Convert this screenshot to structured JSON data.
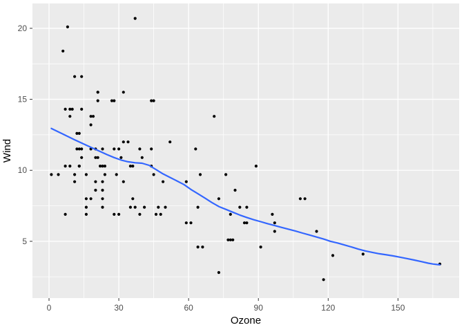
{
  "chart_data": {
    "type": "scatter",
    "title": "",
    "xlabel": "Ozone",
    "ylabel": "Wind",
    "legend": "none",
    "grid": true,
    "xlim": [
      -7.12,
      176.3
    ],
    "ylim": [
      1.0,
      21.75
    ],
    "x_ticks": [
      0,
      30,
      60,
      90,
      120,
      150
    ],
    "y_ticks": [
      5,
      10,
      15,
      20
    ],
    "x_minor_ticks": [
      15,
      45,
      75,
      105,
      135,
      165
    ],
    "y_minor_ticks": [
      2.5,
      7.5,
      12.5,
      17.5
    ],
    "colors": {
      "panel_bg": "#ebebeb",
      "grid_major": "#ffffff",
      "grid_minor": "#ffffff",
      "point": "#000000",
      "smooth_line": "#3366ff",
      "tick_mark": "#333333",
      "tick_label": "#4d4d4d",
      "axis_title": "#000000",
      "outer_bg": "#ffffff"
    },
    "point_radius": 2.1,
    "smooth_line_width": 2.2,
    "points": [
      [
        41,
        7.4
      ],
      [
        36,
        8.0
      ],
      [
        12,
        12.6
      ],
      [
        18,
        11.5
      ],
      [
        28,
        14.9
      ],
      [
        23,
        8.6
      ],
      [
        19,
        13.8
      ],
      [
        8,
        20.1
      ],
      [
        7,
        6.9
      ],
      [
        16,
        9.7
      ],
      [
        11,
        9.2
      ],
      [
        14,
        10.9
      ],
      [
        18,
        13.2
      ],
      [
        14,
        11.5
      ],
      [
        34,
        12.0
      ],
      [
        6,
        18.4
      ],
      [
        30,
        11.5
      ],
      [
        11,
        9.7
      ],
      [
        1,
        9.7
      ],
      [
        11,
        16.6
      ],
      [
        4,
        9.7
      ],
      [
        32,
        12.0
      ],
      [
        23,
        11.5
      ],
      [
        45,
        14.9
      ],
      [
        115,
        5.7
      ],
      [
        37,
        7.4
      ],
      [
        29,
        9.7
      ],
      [
        71,
        13.8
      ],
      [
        39,
        11.5
      ],
      [
        23,
        8.0
      ],
      [
        21,
        14.9
      ],
      [
        37,
        20.7
      ],
      [
        20,
        9.2
      ],
      [
        12,
        11.5
      ],
      [
        13,
        10.3
      ],
      [
        135,
        4.1
      ],
      [
        49,
        9.2
      ],
      [
        32,
        9.2
      ],
      [
        64,
        4.6
      ],
      [
        40,
        10.9
      ],
      [
        77,
        5.1
      ],
      [
        97,
        6.3
      ],
      [
        97,
        5.7
      ],
      [
        85,
        7.4
      ],
      [
        10,
        14.3
      ],
      [
        27,
        14.9
      ],
      [
        7,
        14.3
      ],
      [
        48,
        6.9
      ],
      [
        35,
        10.3
      ],
      [
        61,
        6.3
      ],
      [
        79,
        5.1
      ],
      [
        63,
        11.5
      ],
      [
        16,
        6.9
      ],
      [
        80,
        8.6
      ],
      [
        108,
        8.0
      ],
      [
        20,
        8.6
      ],
      [
        52,
        12.0
      ],
      [
        82,
        7.4
      ],
      [
        50,
        7.4
      ],
      [
        64,
        7.4
      ],
      [
        59,
        9.2
      ],
      [
        39,
        6.9
      ],
      [
        9,
        13.8
      ],
      [
        16,
        7.4
      ],
      [
        78,
        6.9
      ],
      [
        35,
        7.4
      ],
      [
        66,
        4.6
      ],
      [
        122,
        4.0
      ],
      [
        89,
        10.3
      ],
      [
        110,
        8.0
      ],
      [
        44,
        11.5
      ],
      [
        28,
        11.5
      ],
      [
        65,
        9.7
      ],
      [
        22,
        10.3
      ],
      [
        59,
        6.3
      ],
      [
        23,
        7.4
      ],
      [
        31,
        10.9
      ],
      [
        44,
        10.3
      ],
      [
        21,
        15.5
      ],
      [
        9,
        14.3
      ],
      [
        45,
        9.7
      ],
      [
        168,
        3.4
      ],
      [
        73,
        8.0
      ],
      [
        76,
        9.7
      ],
      [
        118,
        2.3
      ],
      [
        84,
        6.3
      ],
      [
        85,
        6.3
      ],
      [
        96,
        6.9
      ],
      [
        78,
        5.1
      ],
      [
        73,
        2.8
      ],
      [
        91,
        4.6
      ],
      [
        47,
        7.4
      ],
      [
        32,
        15.5
      ],
      [
        20,
        10.9
      ],
      [
        23,
        10.3
      ],
      [
        21,
        10.9
      ],
      [
        24,
        9.7
      ],
      [
        44,
        14.9
      ],
      [
        21,
        15.5
      ],
      [
        28,
        6.9
      ],
      [
        9,
        10.3
      ],
      [
        13,
        11.5
      ],
      [
        46,
        6.9
      ],
      [
        18,
        13.8
      ],
      [
        13,
        10.3
      ],
      [
        24,
        10.3
      ],
      [
        16,
        8.0
      ],
      [
        13,
        12.6
      ],
      [
        23,
        9.2
      ],
      [
        36,
        10.3
      ],
      [
        7,
        10.3
      ],
      [
        14,
        16.6
      ],
      [
        30,
        6.9
      ],
      [
        14,
        14.3
      ],
      [
        18,
        8.0
      ],
      [
        20,
        11.5
      ]
    ],
    "smooth_line": [
      [
        1,
        12.95
      ],
      [
        6,
        12.55
      ],
      [
        11,
        12.15
      ],
      [
        16,
        11.77
      ],
      [
        21,
        11.4
      ],
      [
        25,
        11.1
      ],
      [
        28,
        10.9
      ],
      [
        31,
        10.72
      ],
      [
        34,
        10.6
      ],
      [
        37,
        10.53
      ],
      [
        40,
        10.5
      ],
      [
        43,
        10.35
      ],
      [
        46,
        10.05
      ],
      [
        49,
        9.75
      ],
      [
        52,
        9.5
      ],
      [
        55,
        9.25
      ],
      [
        58,
        9.0
      ],
      [
        61,
        8.65
      ],
      [
        64,
        8.35
      ],
      [
        67,
        8.05
      ],
      [
        70,
        7.73
      ],
      [
        73,
        7.45
      ],
      [
        76,
        7.25
      ],
      [
        79,
        7.05
      ],
      [
        82,
        6.85
      ],
      [
        85,
        6.68
      ],
      [
        88,
        6.52
      ],
      [
        91,
        6.38
      ],
      [
        94,
        6.24
      ],
      [
        97,
        6.11
      ],
      [
        100,
        5.98
      ],
      [
        103,
        5.85
      ],
      [
        106,
        5.72
      ],
      [
        109,
        5.58
      ],
      [
        112,
        5.44
      ],
      [
        115,
        5.3
      ],
      [
        118,
        5.16
      ],
      [
        121,
        5.0
      ],
      [
        124,
        4.88
      ],
      [
        127,
        4.74
      ],
      [
        130,
        4.6
      ],
      [
        133,
        4.45
      ],
      [
        136,
        4.32
      ],
      [
        139,
        4.22
      ],
      [
        142,
        4.12
      ],
      [
        145,
        4.05
      ],
      [
        148,
        3.97
      ],
      [
        151,
        3.88
      ],
      [
        154,
        3.78
      ],
      [
        157,
        3.68
      ],
      [
        160,
        3.57
      ],
      [
        163,
        3.46
      ],
      [
        165,
        3.4
      ],
      [
        167,
        3.36
      ],
      [
        168,
        3.35
      ]
    ]
  }
}
